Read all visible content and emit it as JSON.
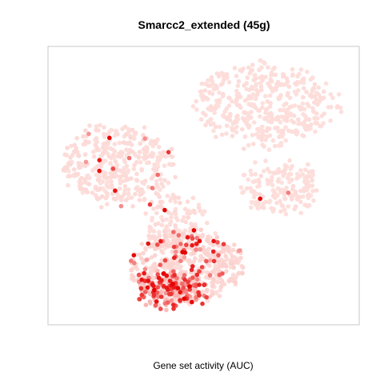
{
  "chart_data": {
    "type": "scatter",
    "title": "Smarcc2_extended (45g)",
    "xlabel": "Gene set activity (AUC)",
    "ylabel": "",
    "grid": false,
    "legend": "none",
    "colors": {
      "low": "#fde0dd",
      "high": "#e60000",
      "frame": "#c8c8c8"
    },
    "embedding_range": {
      "x": [
        0,
        100
      ],
      "y": [
        0,
        100
      ]
    },
    "clusters": [
      {
        "name": "upper-right lobe",
        "cx": 70,
        "cy": 80,
        "rx": 24,
        "ry": 15,
        "n": 420,
        "level": 0.03,
        "hot": 0.0
      },
      {
        "name": "upper-left lobe",
        "cx": 22,
        "cy": 58,
        "rx": 18,
        "ry": 15,
        "n": 380,
        "level": 0.05,
        "hot": 0.04
      },
      {
        "name": "right arm",
        "cx": 75,
        "cy": 49,
        "rx": 14,
        "ry": 9,
        "n": 170,
        "level": 0.03,
        "hot": 0.01
      },
      {
        "name": "connector",
        "cx": 40,
        "cy": 36,
        "rx": 10,
        "ry": 10,
        "n": 120,
        "level": 0.05,
        "hot": 0.04
      },
      {
        "name": "lower lobe",
        "cx": 44,
        "cy": 20,
        "rx": 19,
        "ry": 13,
        "n": 520,
        "level": 0.12,
        "hot": 0.16
      },
      {
        "name": "lower hotspot",
        "cx": 38,
        "cy": 11,
        "rx": 10,
        "ry": 6,
        "n": 180,
        "level": 0.35,
        "hot": 0.45
      }
    ]
  }
}
